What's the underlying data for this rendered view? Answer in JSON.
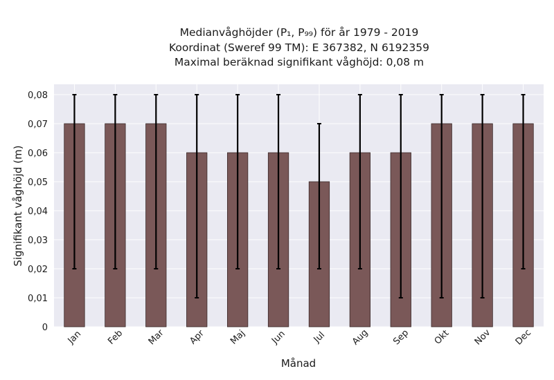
{
  "chart_data": {
    "type": "bar",
    "title_lines": [
      "Medianvåghöjder (P₁, P₉₉) för år 1979 - 2019",
      "Koordinat (Sweref 99 TM): E 367382, N 6192359",
      "Maximal beräknad signifikant våghöjd: 0,08 m"
    ],
    "xlabel": "Månad",
    "ylabel": "Signifikant våghöjd (m)",
    "ylim": [
      0,
      0.08
    ],
    "y_ticks": [
      {
        "value": 0,
        "label": "0"
      },
      {
        "value": 0.01,
        "label": "0,01"
      },
      {
        "value": 0.02,
        "label": "0,02"
      },
      {
        "value": 0.03,
        "label": "0,03"
      },
      {
        "value": 0.04,
        "label": "0,04"
      },
      {
        "value": 0.05,
        "label": "0,05"
      },
      {
        "value": 0.06,
        "label": "0,06"
      },
      {
        "value": 0.07,
        "label": "0,07"
      },
      {
        "value": 0.08,
        "label": "0,08"
      }
    ],
    "categories": [
      "Jan",
      "Feb",
      "Mar",
      "Apr",
      "Maj",
      "Jun",
      "Jul",
      "Aug",
      "Sep",
      "Okt",
      "Nov",
      "Dec"
    ],
    "values": [
      0.07,
      0.07,
      0.07,
      0.06,
      0.06,
      0.06,
      0.05,
      0.06,
      0.06,
      0.07,
      0.07,
      0.07
    ],
    "p1": [
      0.02,
      0.02,
      0.02,
      0.01,
      0.02,
      0.02,
      0.02,
      0.02,
      0.01,
      0.01,
      0.01,
      0.02
    ],
    "p99": [
      0.08,
      0.08,
      0.08,
      0.08,
      0.08,
      0.08,
      0.07,
      0.08,
      0.08,
      0.08,
      0.08,
      0.08
    ],
    "grid": true,
    "colors": {
      "bar": "#7a5858",
      "bar_edge": "#3a2a2a",
      "plot_bg": "#eaeaf2",
      "grid": "#ffffff",
      "errorbar": "#000000"
    }
  }
}
